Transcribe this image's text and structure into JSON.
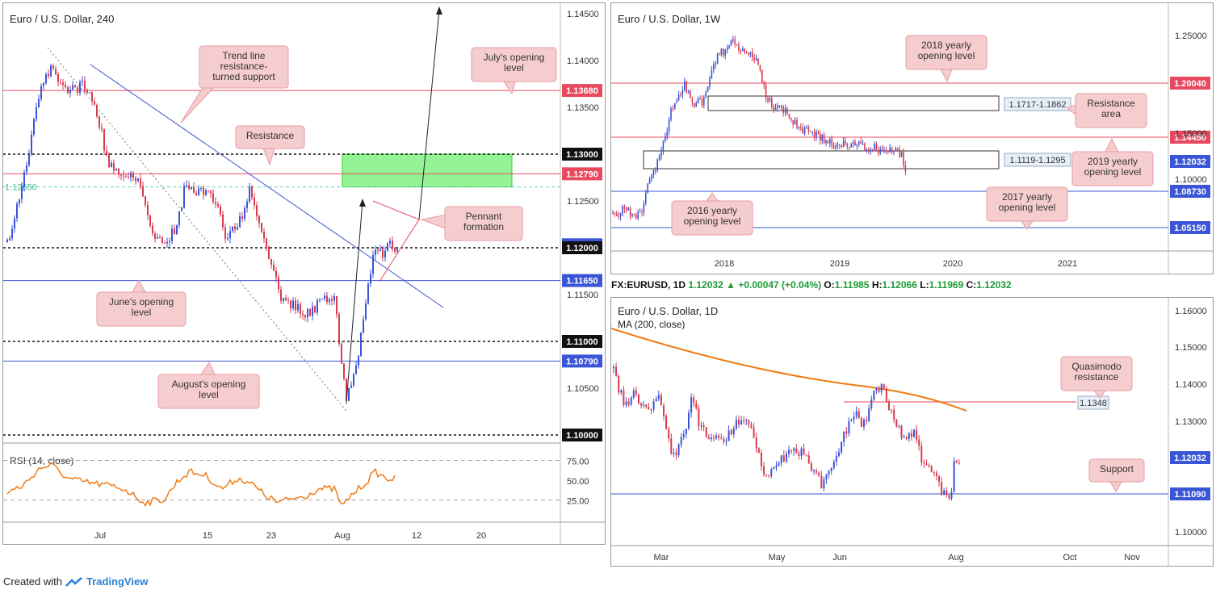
{
  "footer": {
    "created_label": "Created with",
    "brand": "TradingView"
  },
  "colors": {
    "up": "#3b53d9",
    "down": "#d83a4f",
    "red_level": "#e8495e",
    "blue_level": "#3a55d6",
    "annot_bg": "#f6cdcf",
    "annot_border": "#e89aa0",
    "green_zone": "#8ef28e",
    "rsi": "#ef7d1a",
    "ma": "#f07a12"
  },
  "panel_4h": {
    "title": "Euro / U.S. Dollar, 240",
    "price_ticks": [
      "1.14500",
      "1.14000",
      "1.13500",
      "1.12500",
      "1.11500",
      "1.10500"
    ],
    "x_ticks": [
      "Jul",
      "15",
      "23",
      "Aug",
      "12",
      "20"
    ],
    "levels": [
      {
        "label": "1.13680",
        "value": 1.1368,
        "kind": "red"
      },
      {
        "label": "1.13000",
        "value": 1.13,
        "kind": "black"
      },
      {
        "label": "1.12790",
        "value": 1.1279,
        "kind": "red"
      },
      {
        "label": "1.12032",
        "value": 1.12032,
        "kind": "current"
      },
      {
        "label": "1.12000",
        "value": 1.12,
        "kind": "black"
      },
      {
        "label": "1.11650",
        "value": 1.1165,
        "kind": "blue"
      },
      {
        "label": "1.11000",
        "value": 1.11,
        "kind": "black"
      },
      {
        "label": "1.10790",
        "value": 1.1079,
        "kind": "blue"
      },
      {
        "label": "1.10000",
        "value": 1.1,
        "kind": "black"
      }
    ],
    "fib_label": "1.12650",
    "annotations": {
      "trendline": "Trend line resistance- turned support",
      "resistance": "Resistance",
      "july": "July's opening level",
      "pennant": "Pennant formation",
      "june": "June's opening level",
      "august": "August's opening level"
    },
    "rsi": {
      "title": "RSI (14, close)",
      "ticks": [
        "75.00",
        "50.00",
        "25.00"
      ]
    }
  },
  "panel_1w": {
    "title": "Euro / U.S. Dollar, 1W",
    "price_ticks": [
      "1.25000",
      "1.15000",
      "1.10000"
    ],
    "x_ticks": [
      "2018",
      "2019",
      "2020",
      "2021"
    ],
    "levels": [
      {
        "label": "1.20040",
        "kind": "red"
      },
      {
        "label": "1.14450",
        "kind": "red"
      },
      {
        "label": "1.12032",
        "kind": "current"
      },
      {
        "label": "1.08730",
        "kind": "blue"
      },
      {
        "label": "1.05150",
        "kind": "blue"
      }
    ],
    "zones": [
      "1.1717-1.1862",
      "1.1119-1.1295"
    ],
    "annotations": {
      "y2018": "2018 yearly opening level",
      "resistance_area": "Resistance area",
      "y2019": "2019 yearly opening level",
      "y2016": "2016 yearly opening level",
      "y2017": "2017 yearly opening level"
    }
  },
  "ticker": {
    "symbol": "FX:EURUSD, 1D",
    "last": "1.12032",
    "arrow": "▲",
    "change": "+0.00047 (+0.04%)",
    "o_label": "O:",
    "o": "1.11985",
    "h_label": "H:",
    "h": "1.12066",
    "l_label": "L:",
    "l": "1.11969",
    "c_label": "C:",
    "c": "1.12032"
  },
  "panel_1d": {
    "title": "Euro / U.S. Dollar, 1D",
    "ma_label": "MA (200, close)",
    "price_ticks": [
      "1.16000",
      "1.15000",
      "1.14000",
      "1.13000",
      "1.10000"
    ],
    "x_ticks": [
      "Mar",
      "May",
      "Jun",
      "Aug",
      "Oct",
      "Nov"
    ],
    "levels": [
      {
        "label": "1.12032",
        "kind": "current"
      },
      {
        "label": "1.11090",
        "kind": "blue"
      }
    ],
    "qm_level": "1.1348",
    "annotations": {
      "quasimodo": "Quasimodo resistance",
      "support": "Support"
    }
  }
}
